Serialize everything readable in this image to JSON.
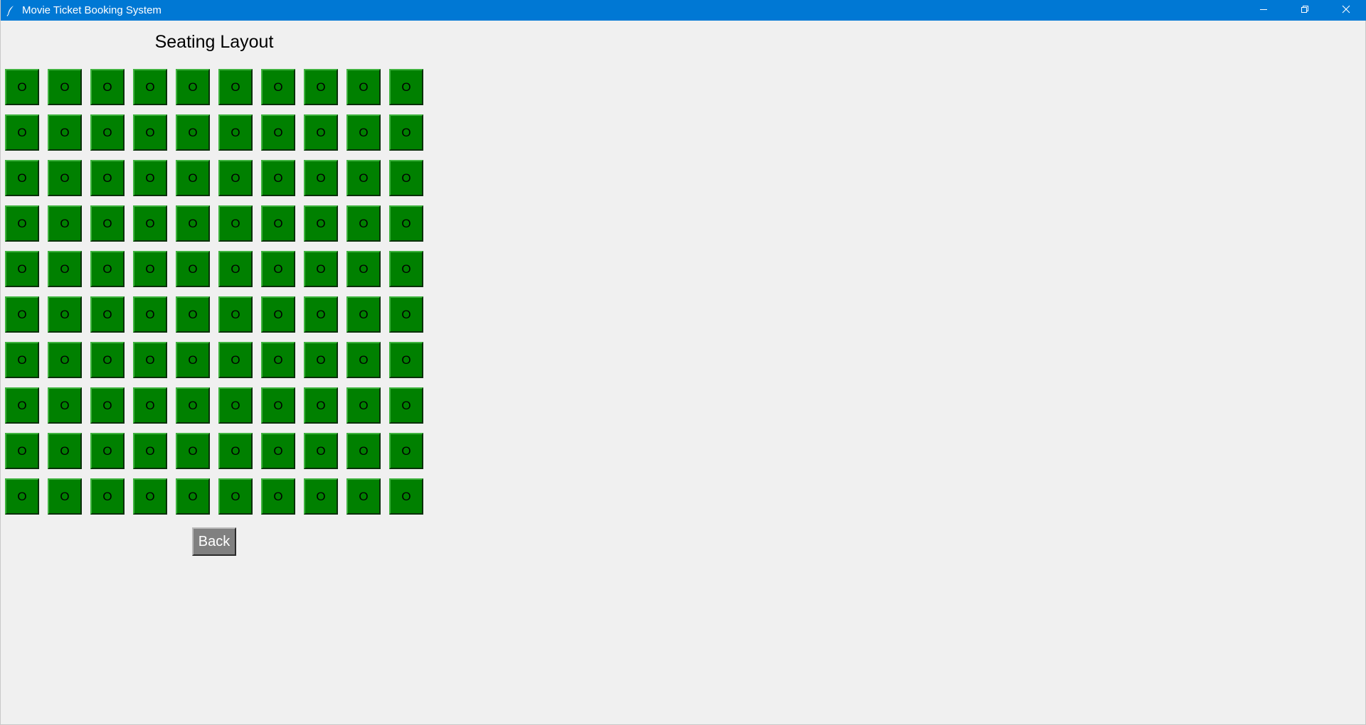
{
  "window": {
    "title": "Movie Ticket Booking System",
    "icon": "feather-icon",
    "controls": [
      "minimize-icon",
      "restore-icon",
      "close-icon"
    ],
    "titlebar_color": "#0078d4"
  },
  "page": {
    "heading": "Seating Layout",
    "back_label": "Back"
  },
  "seats": {
    "rows": 10,
    "columns": 10,
    "available_color": "#008000",
    "layout": [
      [
        "O",
        "O",
        "O",
        "O",
        "O",
        "O",
        "O",
        "O",
        "O",
        "O"
      ],
      [
        "O",
        "O",
        "O",
        "O",
        "O",
        "O",
        "O",
        "O",
        "O",
        "O"
      ],
      [
        "O",
        "O",
        "O",
        "O",
        "O",
        "O",
        "O",
        "O",
        "O",
        "O"
      ],
      [
        "O",
        "O",
        "O",
        "O",
        "O",
        "O",
        "O",
        "O",
        "O",
        "O"
      ],
      [
        "O",
        "O",
        "O",
        "O",
        "O",
        "O",
        "O",
        "O",
        "O",
        "O"
      ],
      [
        "O",
        "O",
        "O",
        "O",
        "O",
        "O",
        "O",
        "O",
        "O",
        "O"
      ],
      [
        "O",
        "O",
        "O",
        "O",
        "O",
        "O",
        "O",
        "O",
        "O",
        "O"
      ],
      [
        "O",
        "O",
        "O",
        "O",
        "O",
        "O",
        "O",
        "O",
        "O",
        "O"
      ],
      [
        "O",
        "O",
        "O",
        "O",
        "O",
        "O",
        "O",
        "O",
        "O",
        "O"
      ],
      [
        "O",
        "O",
        "O",
        "O",
        "O",
        "O",
        "O",
        "O",
        "O",
        "O"
      ]
    ]
  },
  "button_colors": {
    "back": "#808080"
  }
}
